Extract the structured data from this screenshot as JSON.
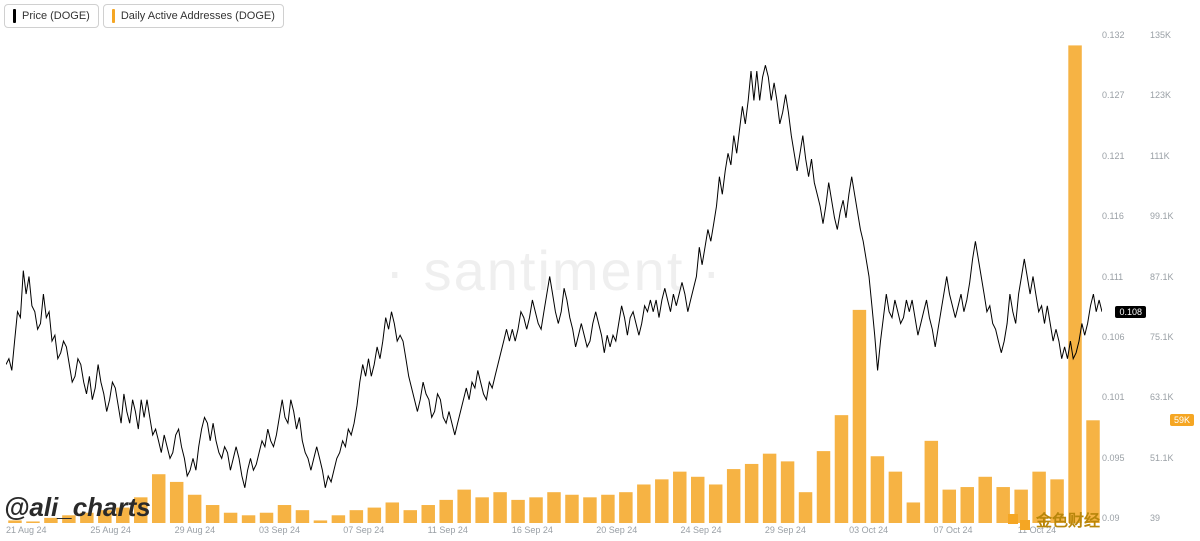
{
  "legend": {
    "price": {
      "label": "Price (DOGE)",
      "color": "#000000"
    },
    "daa": {
      "label": "Daily Active Addresses (DOGE)",
      "color": "#f5a623"
    }
  },
  "watermark": "santiment",
  "attribution": "@ali_charts",
  "logo_text": "金色财经",
  "chart": {
    "type": "line+bar",
    "background_color": "#ffffff",
    "price_line_color": "#000000",
    "price_line_width": 1,
    "bar_color": "#f5a623",
    "bar_width_ratio": 0.75,
    "price_axis": {
      "min": 0.09,
      "max": 0.132,
      "ticks": [
        "0.132",
        "0.127",
        "0.121",
        "0.116",
        "0.111",
        "0.106",
        "0.101",
        "0.095",
        "0.09"
      ],
      "current_badge": "0.108"
    },
    "daa_axis": {
      "min": 39000,
      "max": 135000,
      "ticks": [
        "135K",
        "123K",
        "111K",
        "99.1K",
        "87.1K",
        "75.1K",
        "63.1K",
        "51.1K",
        "39"
      ],
      "current_badge": "59K"
    },
    "x_labels": [
      "21 Aug 24",
      "25 Aug 24",
      "29 Aug 24",
      "03 Sep 24",
      "07 Sep 24",
      "11 Sep 24",
      "16 Sep 24",
      "20 Sep 24",
      "24 Sep 24",
      "29 Sep 24",
      "03 Oct 24",
      "07 Oct 24",
      "11 Oct 24"
    ],
    "bars": [
      39.5,
      39.3,
      40,
      40.5,
      41,
      41.5,
      42,
      44,
      48.5,
      47,
      44.5,
      42.5,
      41,
      40.5,
      41,
      42.5,
      41.5,
      39.5,
      40.5,
      41.5,
      42,
      43,
      41.5,
      42.5,
      43.5,
      45.5,
      44,
      45,
      43.5,
      44,
      45,
      44.5,
      44,
      44.5,
      45,
      46.5,
      47.5,
      49,
      48,
      46.5,
      49.5,
      50.5,
      52.5,
      51,
      45,
      53,
      60,
      80.5,
      52,
      49,
      43,
      55,
      45.5,
      46,
      48,
      46,
      45.5,
      49,
      47.5,
      132,
      59
    ],
    "price": [
      0.1035,
      0.104,
      0.103,
      0.1055,
      0.108,
      0.1075,
      0.1115,
      0.1095,
      0.111,
      0.1085,
      0.108,
      0.1065,
      0.107,
      0.1095,
      0.1075,
      0.108,
      0.1055,
      0.106,
      0.104,
      0.1045,
      0.1055,
      0.105,
      0.1035,
      0.102,
      0.1025,
      0.104,
      0.1035,
      0.102,
      0.101,
      0.1025,
      0.1005,
      0.1015,
      0.1035,
      0.102,
      0.101,
      0.0995,
      0.1005,
      0.102,
      0.1015,
      0.1,
      0.0985,
      0.101,
      0.0995,
      0.0985,
      0.1005,
      0.0995,
      0.098,
      0.1005,
      0.099,
      0.1005,
      0.099,
      0.0975,
      0.098,
      0.097,
      0.096,
      0.0975,
      0.0965,
      0.0955,
      0.096,
      0.0975,
      0.098,
      0.0965,
      0.0955,
      0.094,
      0.0945,
      0.0955,
      0.0945,
      0.0965,
      0.098,
      0.099,
      0.0985,
      0.097,
      0.0985,
      0.097,
      0.096,
      0.0955,
      0.0965,
      0.096,
      0.0945,
      0.0955,
      0.0965,
      0.0955,
      0.094,
      0.093,
      0.0945,
      0.0955,
      0.0945,
      0.095,
      0.096,
      0.097,
      0.0965,
      0.098,
      0.097,
      0.0965,
      0.0975,
      0.099,
      0.1005,
      0.099,
      0.0985,
      0.1005,
      0.0995,
      0.098,
      0.099,
      0.097,
      0.096,
      0.0955,
      0.0945,
      0.0955,
      0.0965,
      0.0955,
      0.0945,
      0.093,
      0.094,
      0.0935,
      0.0945,
      0.0955,
      0.096,
      0.097,
      0.0965,
      0.098,
      0.0975,
      0.0985,
      0.1,
      0.102,
      0.1035,
      0.1025,
      0.104,
      0.1025,
      0.1035,
      0.105,
      0.104,
      0.1055,
      0.1075,
      0.1065,
      0.108,
      0.107,
      0.1055,
      0.106,
      0.1055,
      0.104,
      0.1025,
      0.1015,
      0.1005,
      0.0995,
      0.1005,
      0.102,
      0.101,
      0.1005,
      0.099,
      0.0995,
      0.101,
      0.1005,
      0.099,
      0.0985,
      0.0995,
      0.0985,
      0.0975,
      0.0985,
      0.0995,
      0.1005,
      0.1015,
      0.1005,
      0.102,
      0.1015,
      0.103,
      0.102,
      0.101,
      0.1005,
      0.102,
      0.1015,
      0.1025,
      0.1035,
      0.1045,
      0.1055,
      0.1065,
      0.1055,
      0.1065,
      0.1055,
      0.1065,
      0.108,
      0.1075,
      0.1065,
      0.1075,
      0.109,
      0.108,
      0.107,
      0.1065,
      0.108,
      0.1095,
      0.111,
      0.1095,
      0.108,
      0.107,
      0.108,
      0.11,
      0.109,
      0.1075,
      0.1065,
      0.105,
      0.106,
      0.107,
      0.106,
      0.105,
      0.1055,
      0.107,
      0.108,
      0.107,
      0.106,
      0.1045,
      0.106,
      0.105,
      0.106,
      0.1055,
      0.107,
      0.1085,
      0.1075,
      0.106,
      0.1075,
      0.108,
      0.107,
      0.106,
      0.107,
      0.1085,
      0.108,
      0.109,
      0.108,
      0.109,
      0.1075,
      0.109,
      0.11,
      0.109,
      0.108,
      0.1095,
      0.1085,
      0.1095,
      0.1105,
      0.1095,
      0.108,
      0.109,
      0.11,
      0.111,
      0.1135,
      0.112,
      0.1135,
      0.115,
      0.114,
      0.1155,
      0.117,
      0.1195,
      0.118,
      0.12,
      0.1215,
      0.1205,
      0.123,
      0.1215,
      0.1235,
      0.1255,
      0.124,
      0.126,
      0.1285,
      0.126,
      0.1285,
      0.126,
      0.128,
      0.129,
      0.128,
      0.126,
      0.1275,
      0.126,
      0.124,
      0.125,
      0.1265,
      0.125,
      0.123,
      0.1215,
      0.12,
      0.1215,
      0.123,
      0.121,
      0.1195,
      0.121,
      0.119,
      0.118,
      0.117,
      0.1155,
      0.117,
      0.119,
      0.1175,
      0.116,
      0.115,
      0.1165,
      0.1175,
      0.116,
      0.118,
      0.1195,
      0.118,
      0.1165,
      0.115,
      0.114,
      0.1125,
      0.111,
      0.1085,
      0.106,
      0.103,
      0.1055,
      0.1075,
      0.1095,
      0.108,
      0.1075,
      0.109,
      0.108,
      0.107,
      0.1075,
      0.109,
      0.108,
      0.109,
      0.1075,
      0.106,
      0.107,
      0.108,
      0.109,
      0.1075,
      0.1065,
      0.105,
      0.1065,
      0.108,
      0.1095,
      0.111,
      0.1095,
      0.1085,
      0.1075,
      0.1085,
      0.1095,
      0.108,
      0.109,
      0.1105,
      0.1125,
      0.114,
      0.1125,
      0.111,
      0.1095,
      0.108,
      0.1085,
      0.107,
      0.1065,
      0.1055,
      0.1045,
      0.1055,
      0.107,
      0.1095,
      0.108,
      0.107,
      0.1095,
      0.111,
      0.1125,
      0.111,
      0.1095,
      0.111,
      0.1095,
      0.108,
      0.1085,
      0.107,
      0.1085,
      0.107,
      0.1055,
      0.1065,
      0.1055,
      0.104,
      0.105,
      0.104,
      0.1055,
      0.104,
      0.1045,
      0.1055,
      0.107,
      0.106,
      0.107,
      0.1085,
      0.1095,
      0.108,
      0.109,
      0.108
    ]
  }
}
